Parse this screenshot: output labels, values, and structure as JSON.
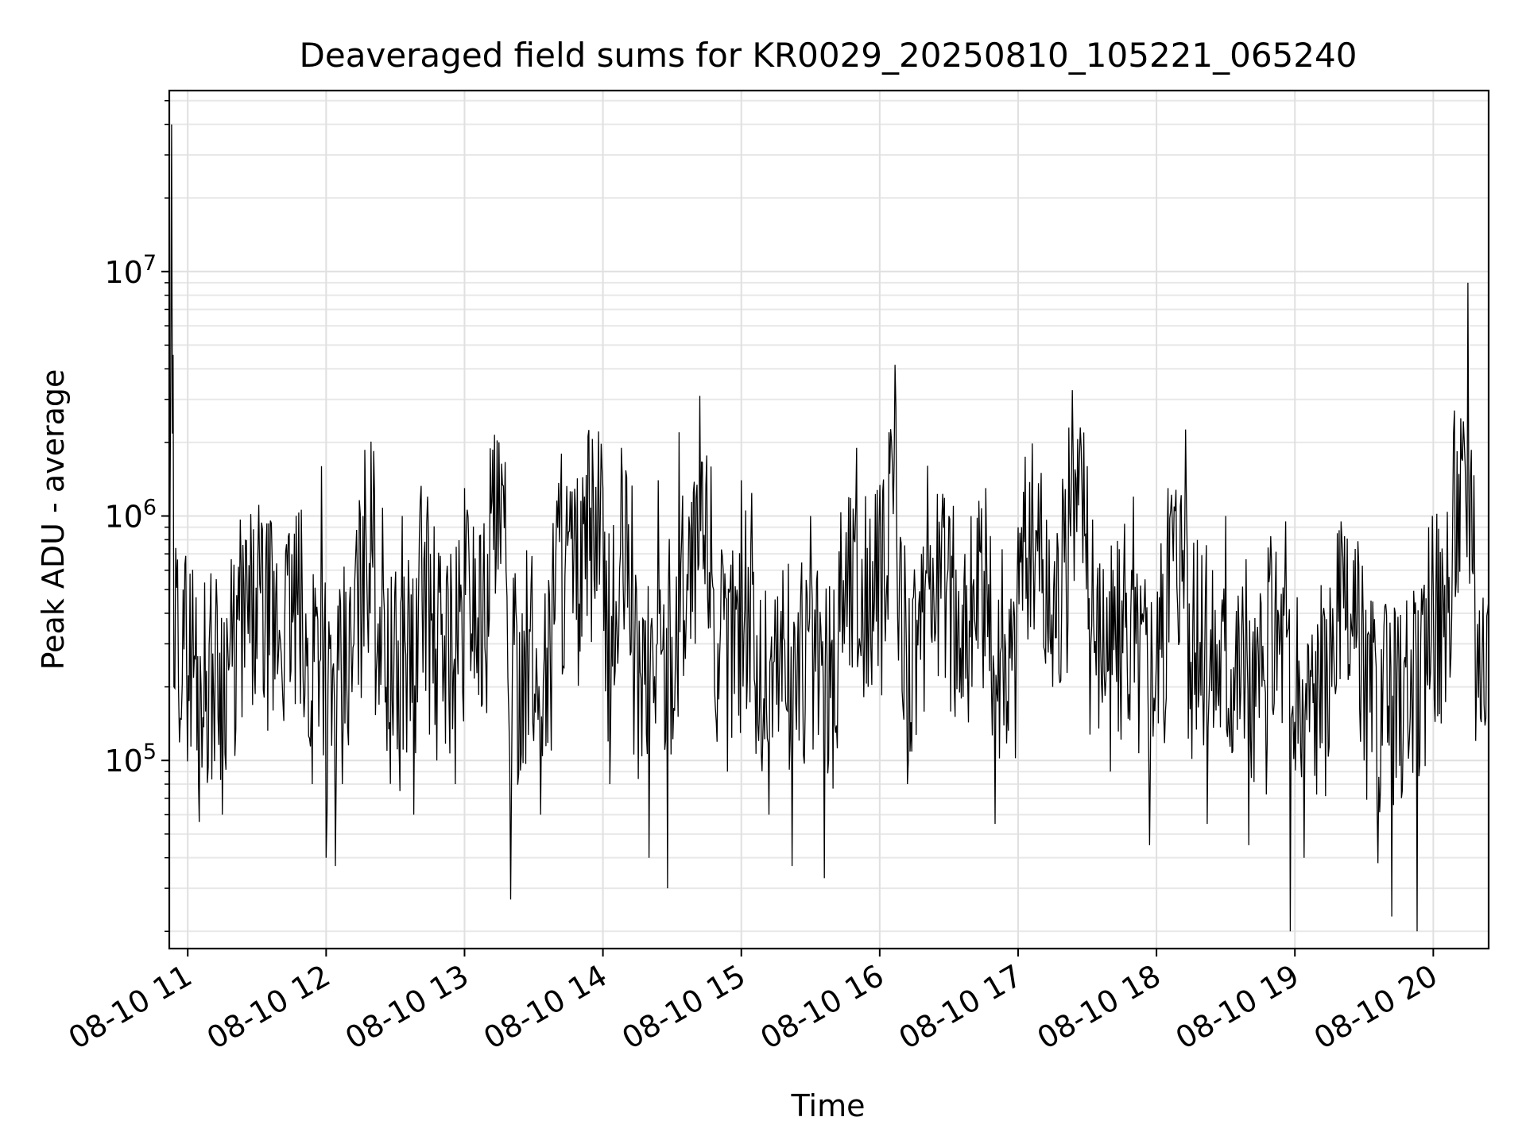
{
  "chart_data": {
    "type": "line",
    "title": "Deaveraged field sums for KR0029_20250810_105221_065240",
    "xlabel": "Time",
    "ylabel": "Peak ADU - average",
    "x_type": "time",
    "xlim": [
      "2025-08-10 10:52",
      "2025-08-10 20:24"
    ],
    "yscale": "log",
    "ylim": [
      17000,
      55000000
    ],
    "grid": true,
    "grid_minor": true,
    "legend": "none",
    "line_color": "#000000",
    "x_ticks": [
      {
        "value": "2025-08-10 11:00",
        "label": "08-10 11"
      },
      {
        "value": "2025-08-10 12:00",
        "label": "08-10 12"
      },
      {
        "value": "2025-08-10 13:00",
        "label": "08-10 13"
      },
      {
        "value": "2025-08-10 14:00",
        "label": "08-10 14"
      },
      {
        "value": "2025-08-10 15:00",
        "label": "08-10 15"
      },
      {
        "value": "2025-08-10 16:00",
        "label": "08-10 16"
      },
      {
        "value": "2025-08-10 17:00",
        "label": "08-10 17"
      },
      {
        "value": "2025-08-10 18:00",
        "label": "08-10 18"
      },
      {
        "value": "2025-08-10 19:00",
        "label": "08-10 19"
      },
      {
        "value": "2025-08-10 20:00",
        "label": "08-10 20"
      }
    ],
    "y_ticks": [
      {
        "value": 100000,
        "base": "10",
        "exp": "5"
      },
      {
        "value": 1000000,
        "base": "10",
        "exp": "6"
      },
      {
        "value": 10000000,
        "base": "10",
        "exp": "7"
      }
    ],
    "series": [
      {
        "points": [
          [
            "2025-08-10 10:52",
            170000
          ],
          [
            "2025-08-10 10:53",
            40000000
          ],
          [
            "2025-08-10 10:54",
            200000
          ],
          [
            "2025-08-10 10:58",
            500000
          ],
          [
            "2025-08-10 11:04",
            110000
          ],
          [
            "2025-08-10 11:05",
            56000
          ],
          [
            "2025-08-10 11:12",
            330000
          ],
          [
            "2025-08-10 11:15",
            60000
          ],
          [
            "2025-08-10 11:22",
            620000
          ],
          [
            "2025-08-10 11:30",
            260000
          ],
          [
            "2025-08-10 11:32",
            940000
          ],
          [
            "2025-08-10 11:37",
            160000
          ],
          [
            "2025-08-10 11:44",
            850000
          ],
          [
            "2025-08-10 11:50",
            220000
          ],
          [
            "2025-08-10 11:54",
            80000
          ],
          [
            "2025-08-10 11:58",
            1600000
          ],
          [
            "2025-08-10 12:00",
            40000
          ],
          [
            "2025-08-10 12:04",
            37000
          ],
          [
            "2025-08-10 12:07",
            80000
          ],
          [
            "2025-08-10 12:12",
            300000
          ],
          [
            "2025-08-10 12:16",
            1000000
          ],
          [
            "2025-08-10 12:21",
            1200000
          ],
          [
            "2025-08-10 12:26",
            200000
          ],
          [
            "2025-08-10 12:32",
            75000
          ],
          [
            "2025-08-10 12:33",
            1000000
          ],
          [
            "2025-08-10 12:38",
            60000
          ],
          [
            "2025-08-10 12:40",
            420000
          ],
          [
            "2025-08-10 12:44",
            1200000
          ],
          [
            "2025-08-10 12:48",
            100000
          ],
          [
            "2025-08-10 12:54",
            700000
          ],
          [
            "2025-08-10 12:56",
            80000
          ],
          [
            "2025-08-10 13:00",
            1300000
          ],
          [
            "2025-08-10 13:05",
            300000
          ],
          [
            "2025-08-10 13:10",
            700000
          ],
          [
            "2025-08-10 13:13",
            2150000
          ],
          [
            "2025-08-10 13:18",
            600000
          ],
          [
            "2025-08-10 13:20",
            27000
          ],
          [
            "2025-08-10 13:25",
            400000
          ],
          [
            "2025-08-10 13:30",
            120000
          ],
          [
            "2025-08-10 13:33",
            60000
          ],
          [
            "2025-08-10 13:38",
            500000
          ],
          [
            "2025-08-10 13:42",
            1800000
          ],
          [
            "2025-08-10 13:47",
            400000
          ],
          [
            "2025-08-10 13:52",
            1200000
          ],
          [
            "2025-08-10 14:00",
            1300000
          ],
          [
            "2025-08-10 14:03",
            80000
          ],
          [
            "2025-08-10 14:08",
            1900000
          ],
          [
            "2025-08-10 14:13",
            400000
          ],
          [
            "2025-08-10 14:20",
            40000
          ],
          [
            "2025-08-10 14:24",
            1400000
          ],
          [
            "2025-08-10 14:28",
            30000
          ],
          [
            "2025-08-10 14:33",
            2200000
          ],
          [
            "2025-08-10 14:40",
            300000
          ],
          [
            "2025-08-10 14:42",
            3100000
          ],
          [
            "2025-08-10 14:48",
            500000
          ],
          [
            "2025-08-10 14:54",
            90000
          ],
          [
            "2025-08-10 15:00",
            1400000
          ],
          [
            "2025-08-10 15:06",
            200000
          ],
          [
            "2025-08-10 15:12",
            60000
          ],
          [
            "2025-08-10 15:18",
            600000
          ],
          [
            "2025-08-10 15:22",
            37000
          ],
          [
            "2025-08-10 15:30",
            1000000
          ],
          [
            "2025-08-10 15:36",
            33000
          ],
          [
            "2025-08-10 15:42",
            300000
          ],
          [
            "2025-08-10 15:50",
            1900000
          ],
          [
            "2025-08-10 15:55",
            200000
          ],
          [
            "2025-08-10 16:04",
            2200000
          ],
          [
            "2025-08-10 16:07",
            2800000
          ],
          [
            "2025-08-10 16:12",
            80000
          ],
          [
            "2025-08-10 16:20",
            600000
          ],
          [
            "2025-08-10 16:30",
            1000000
          ],
          [
            "2025-08-10 16:40",
            200000
          ],
          [
            "2025-08-10 16:46",
            1300000
          ],
          [
            "2025-08-10 16:50",
            55000
          ],
          [
            "2025-08-10 17:00",
            900000
          ],
          [
            "2025-08-10 17:10",
            1500000
          ],
          [
            "2025-08-10 17:15",
            200000
          ],
          [
            "2025-08-10 17:22",
            2300000
          ],
          [
            "2025-08-10 17:30",
            1600000
          ],
          [
            "2025-08-10 17:40",
            90000
          ],
          [
            "2025-08-10 17:50",
            1200000
          ],
          [
            "2025-08-10 17:57",
            45000
          ],
          [
            "2025-08-10 18:05",
            1300000
          ],
          [
            "2025-08-10 18:13",
            1100000
          ],
          [
            "2025-08-10 18:22",
            55000
          ],
          [
            "2025-08-10 18:30",
            1000000
          ],
          [
            "2025-08-10 18:40",
            45000
          ],
          [
            "2025-08-10 18:48",
            120000
          ],
          [
            "2025-08-10 18:56",
            950000
          ],
          [
            "2025-08-10 18:58",
            20000
          ],
          [
            "2025-08-10 19:04",
            40000
          ],
          [
            "2025-08-10 19:16",
            200000
          ],
          [
            "2025-08-10 19:20",
            950000
          ],
          [
            "2025-08-10 19:30",
            100000
          ],
          [
            "2025-08-10 19:36",
            38000
          ],
          [
            "2025-08-10 19:42",
            23000
          ],
          [
            "2025-08-10 19:50",
            150000
          ],
          [
            "2025-08-10 19:53",
            20000
          ],
          [
            "2025-08-10 19:58",
            900000
          ],
          [
            "2025-08-10 20:00",
            500000
          ],
          [
            "2025-08-10 20:08",
            400000
          ],
          [
            "2025-08-10 20:15",
            9000000
          ],
          [
            "2025-08-10 20:18",
            500000
          ],
          [
            "2025-08-10 20:22",
            170000
          ],
          [
            "2025-08-10 20:24",
            450000
          ]
        ]
      }
    ]
  }
}
